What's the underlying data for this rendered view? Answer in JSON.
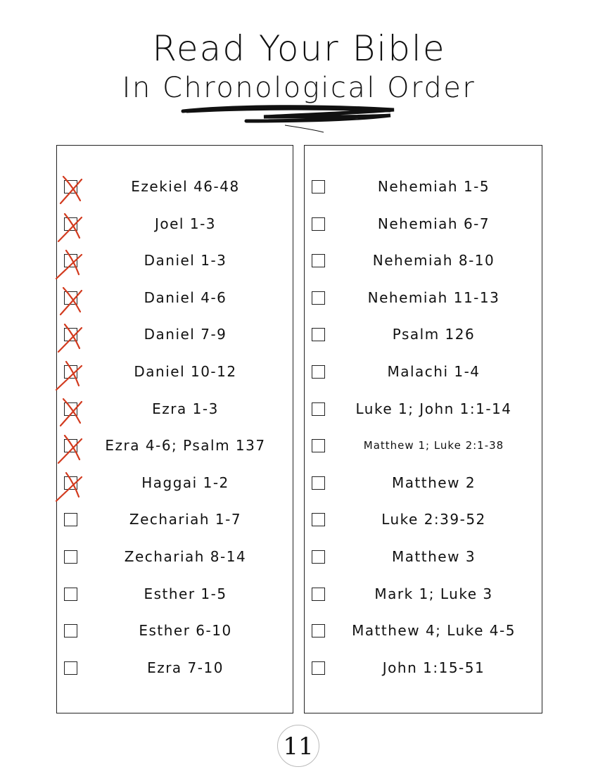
{
  "header": {
    "title": "Read Your Bible",
    "subtitle": "In Chronological Order"
  },
  "colors": {
    "check_mark": "#d23a1e",
    "ink": "#111111"
  },
  "left_column": [
    {
      "label": "Ezekiel 46-48",
      "checked": true
    },
    {
      "label": "Joel 1-3",
      "checked": true
    },
    {
      "label": "Daniel 1-3",
      "checked": true
    },
    {
      "label": "Daniel 4-6",
      "checked": true
    },
    {
      "label": "Daniel 7-9",
      "checked": true
    },
    {
      "label": "Daniel 10-12",
      "checked": true
    },
    {
      "label": "Ezra 1-3",
      "checked": true
    },
    {
      "label": "Ezra 4-6; Psalm 137",
      "checked": true
    },
    {
      "label": "Haggai 1-2",
      "checked": true
    },
    {
      "label": "Zechariah 1-7",
      "checked": false
    },
    {
      "label": "Zechariah 8-14",
      "checked": false
    },
    {
      "label": "Esther 1-5",
      "checked": false
    },
    {
      "label": "Esther 6-10",
      "checked": false
    },
    {
      "label": "Ezra 7-10",
      "checked": false
    }
  ],
  "right_column": [
    {
      "label": "Nehemiah 1-5",
      "checked": false
    },
    {
      "label": "Nehemiah 6-7",
      "checked": false
    },
    {
      "label": "Nehemiah 8-10",
      "checked": false
    },
    {
      "label": "Nehemiah 11-13",
      "checked": false
    },
    {
      "label": "Psalm 126",
      "checked": false
    },
    {
      "label": "Malachi 1-4",
      "checked": false
    },
    {
      "label": "Luke 1; John 1:1-14",
      "checked": false
    },
    {
      "label": "Matthew 1; Luke 2:1-38",
      "checked": false,
      "small": true
    },
    {
      "label": "Matthew 2",
      "checked": false
    },
    {
      "label": "Luke 2:39-52",
      "checked": false
    },
    {
      "label": "Matthew 3",
      "checked": false
    },
    {
      "label": "Mark 1; Luke 3",
      "checked": false
    },
    {
      "label": "Matthew 4; Luke 4-5",
      "checked": false
    },
    {
      "label": "John 1:15-51",
      "checked": false
    }
  ],
  "footer": {
    "page_number": "11"
  }
}
